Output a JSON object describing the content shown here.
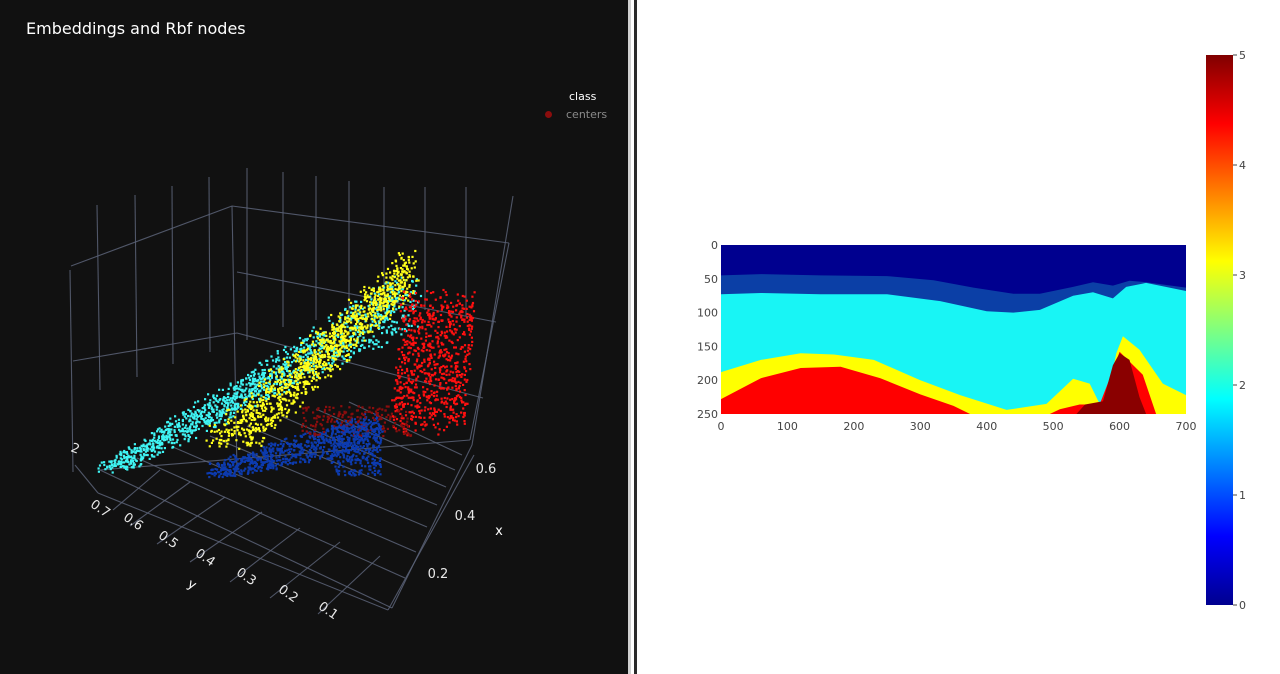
{
  "left_panel": {
    "title": "Embeddings and Rbf nodes",
    "legend": {
      "title": "class",
      "items": [
        {
          "label": "centers",
          "color": "#8b0d0d"
        }
      ]
    },
    "axes": {
      "x": {
        "label": "x",
        "ticks": [
          "0.2",
          "0.4",
          "0.6"
        ]
      },
      "y": {
        "label": "y",
        "ticks": [
          "0.7",
          "0.6",
          "0.5",
          "0.4",
          "0.3",
          "0.2",
          "0.1"
        ]
      },
      "z": {
        "ticks": [
          "2"
        ]
      }
    },
    "colors": {
      "background": "#111111",
      "grid": "#5b6378",
      "cyan": "#3ff4f4",
      "yellow": "#ffff1a",
      "red": "#ff1010",
      "blue": "#0c3bb0",
      "dark_red": "#8b0d0d"
    }
  },
  "chart_data": {
    "type": "heatmap",
    "xlim": [
      0,
      700
    ],
    "ylim": [
      250,
      0
    ],
    "x_ticks": [
      "0",
      "100",
      "200",
      "300",
      "400",
      "500",
      "600",
      "700"
    ],
    "y_ticks": [
      "0",
      "50",
      "100",
      "150",
      "200",
      "250"
    ],
    "colorbar": {
      "range": [
        0,
        5
      ],
      "ticks": [
        "0",
        "1",
        "2",
        "3",
        "4",
        "5"
      ],
      "colormap": "jet"
    },
    "regions": [
      {
        "value": 0,
        "color": "#00008f",
        "top_boundary": [
          [
            0,
            0
          ],
          [
            700,
            0
          ]
        ]
      },
      {
        "value": 1,
        "color": "#0b3fa6",
        "top_boundary": [
          [
            0,
            45
          ],
          [
            60,
            43
          ],
          [
            150,
            45
          ],
          [
            250,
            46
          ],
          [
            320,
            52
          ],
          [
            380,
            63
          ],
          [
            440,
            72
          ],
          [
            480,
            72
          ],
          [
            530,
            62
          ],
          [
            560,
            55
          ],
          [
            590,
            60
          ],
          [
            615,
            53
          ],
          [
            640,
            55
          ],
          [
            700,
            63
          ]
        ]
      },
      {
        "value": 2,
        "color": "#18f5f5",
        "top_boundary": [
          [
            0,
            73
          ],
          [
            60,
            71
          ],
          [
            150,
            73
          ],
          [
            250,
            73
          ],
          [
            330,
            83
          ],
          [
            400,
            98
          ],
          [
            440,
            100
          ],
          [
            480,
            96
          ],
          [
            530,
            75
          ],
          [
            560,
            70
          ],
          [
            590,
            79
          ],
          [
            610,
            62
          ],
          [
            640,
            56
          ],
          [
            700,
            68
          ]
        ]
      },
      {
        "value": 3,
        "color": "#ffff00",
        "top_boundary": [
          [
            0,
            188
          ],
          [
            60,
            170
          ],
          [
            120,
            160
          ],
          [
            170,
            162
          ],
          [
            230,
            170
          ],
          [
            300,
            200
          ],
          [
            360,
            222
          ],
          [
            430,
            244
          ],
          [
            490,
            235
          ],
          [
            530,
            198
          ],
          [
            555,
            205
          ],
          [
            575,
            245
          ],
          [
            585,
            210
          ],
          [
            595,
            160
          ],
          [
            605,
            135
          ],
          [
            630,
            155
          ],
          [
            665,
            205
          ],
          [
            700,
            222
          ]
        ]
      },
      {
        "value": 4,
        "color": "#ff0000",
        "top_boundary": [
          [
            0,
            228
          ],
          [
            60,
            197
          ],
          [
            120,
            182
          ],
          [
            180,
            180
          ],
          [
            240,
            197
          ],
          [
            300,
            221
          ],
          [
            350,
            238
          ],
          [
            375,
            250
          ],
          [
            495,
            250
          ],
          [
            510,
            243
          ],
          [
            540,
            236
          ],
          [
            570,
            236
          ],
          [
            592,
            180
          ],
          [
            600,
            158
          ],
          [
            635,
            192
          ],
          [
            655,
            250
          ]
        ]
      },
      {
        "value": 5,
        "color": "#8a0000",
        "top_boundary": [
          [
            535,
            250
          ],
          [
            548,
            236
          ],
          [
            575,
            231
          ],
          [
            590,
            178
          ],
          [
            600,
            160
          ],
          [
            615,
            170
          ],
          [
            630,
            225
          ],
          [
            640,
            250
          ]
        ]
      }
    ]
  }
}
